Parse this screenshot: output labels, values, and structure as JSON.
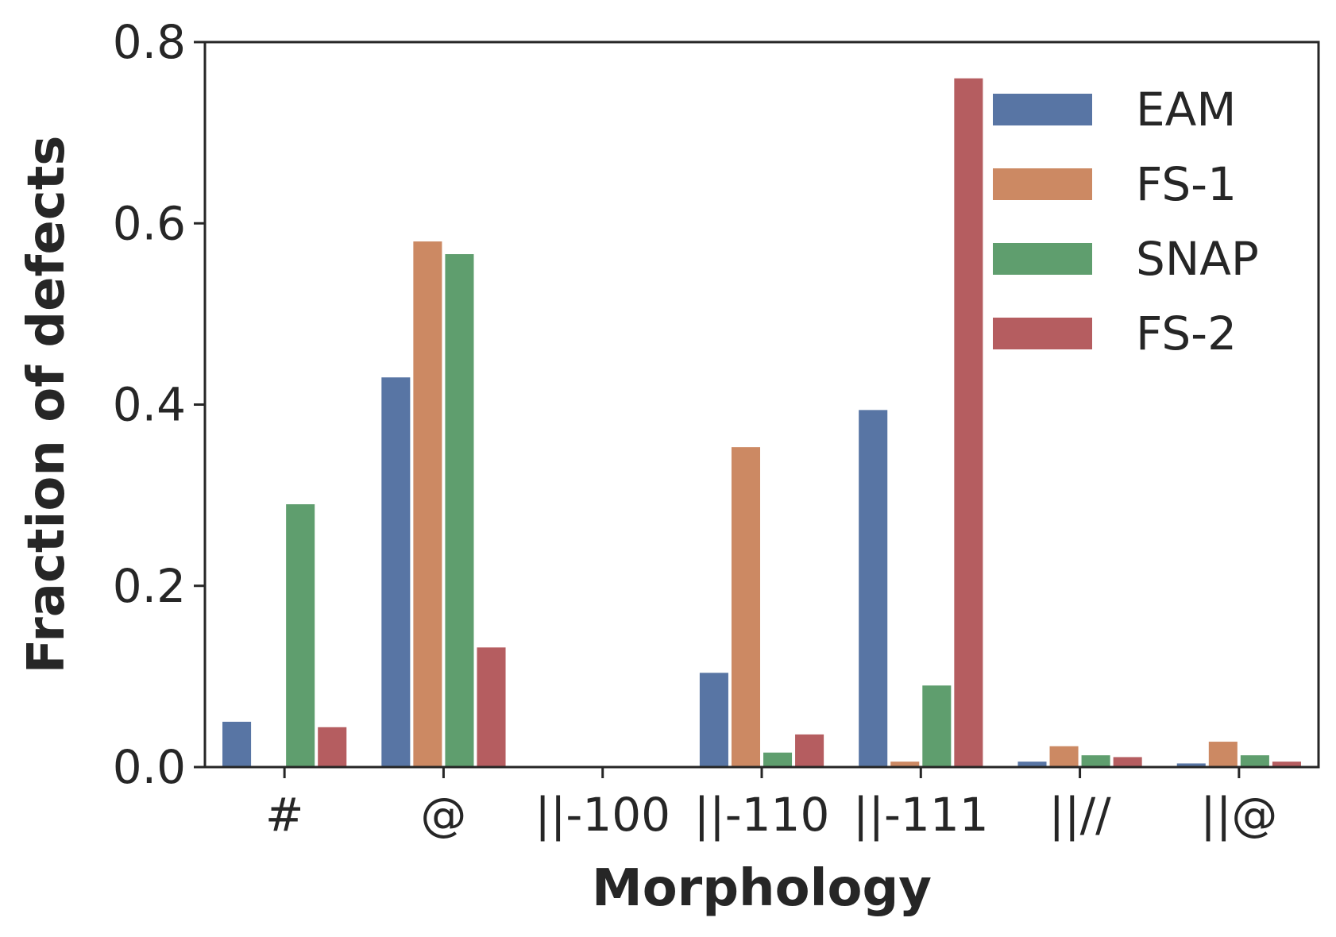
{
  "chart_data": {
    "type": "bar",
    "xlabel": "Morphology",
    "ylabel": "Fraction of defects",
    "ylim": [
      0,
      0.8
    ],
    "yticks": [
      "0.0",
      "0.2",
      "0.4",
      "0.6",
      "0.8"
    ],
    "categories": [
      "#",
      "@",
      "||-100",
      "||-110",
      "||-111",
      "||//",
      "||@"
    ],
    "series": [
      {
        "name": "EAM",
        "color": "#5875a4",
        "values": [
          0.05,
          0.43,
          0.0,
          0.104,
          0.394,
          0.006,
          0.004
        ]
      },
      {
        "name": "FS-1",
        "color": "#cc8963",
        "values": [
          0.0,
          0.58,
          0.0,
          0.353,
          0.006,
          0.023,
          0.028
        ]
      },
      {
        "name": "SNAP",
        "color": "#5f9e6e",
        "values": [
          0.29,
          0.566,
          0.0,
          0.016,
          0.09,
          0.013,
          0.013
        ]
      },
      {
        "name": "FS-2",
        "color": "#b55d60",
        "values": [
          0.044,
          0.132,
          0.0,
          0.036,
          0.76,
          0.011,
          0.006
        ]
      }
    ],
    "legend_position": "top-right",
    "grid": false
  }
}
